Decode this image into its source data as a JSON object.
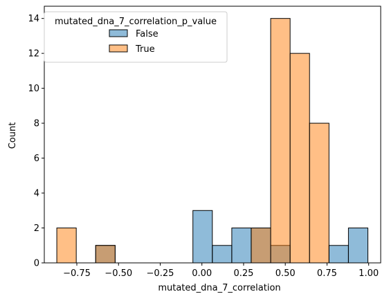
{
  "chart_data": {
    "type": "bar",
    "title": "",
    "xlabel": "mutated_dna_7_correlation",
    "ylabel": "Count",
    "xlim": [
      -0.945,
      1.072
    ],
    "ylim": [
      0,
      14.7
    ],
    "grid": false,
    "legend_placement": "top-left",
    "legend_title": "mutated_dna_7_correlation_p_value",
    "x_ticks": [
      -0.75,
      -0.5,
      -0.25,
      0.0,
      0.25,
      0.5,
      0.75,
      1.0
    ],
    "x_tick_labels": [
      "−0.75",
      "−0.50",
      "−0.25",
      "0.00",
      "0.25",
      "0.50",
      "0.75",
      "1.00"
    ],
    "y_ticks": [
      0,
      2,
      4,
      6,
      8,
      10,
      12,
      14
    ],
    "y_tick_labels": [
      "0",
      "2",
      "4",
      "6",
      "8",
      "10",
      "12",
      "14"
    ],
    "bin_edges": [
      -0.87,
      -0.7534,
      -0.6369,
      -0.5203,
      -0.4037,
      -0.2871,
      -0.1706,
      -0.054,
      0.0626,
      0.1792,
      0.2957,
      0.4123,
      0.5289,
      0.6454,
      0.762,
      0.8786,
      0.9952
    ],
    "series": [
      {
        "name": "False",
        "color": "#1f77b4",
        "values": [
          0,
          0,
          1,
          0,
          0,
          0,
          0,
          3,
          1,
          2,
          2,
          1,
          0,
          0,
          1,
          2
        ]
      },
      {
        "name": "True",
        "color": "#ff7f0e",
        "values": [
          2,
          0,
          1,
          0,
          0,
          0,
          0,
          0,
          0,
          0,
          2,
          14,
          12,
          8,
          0,
          0
        ]
      }
    ]
  }
}
